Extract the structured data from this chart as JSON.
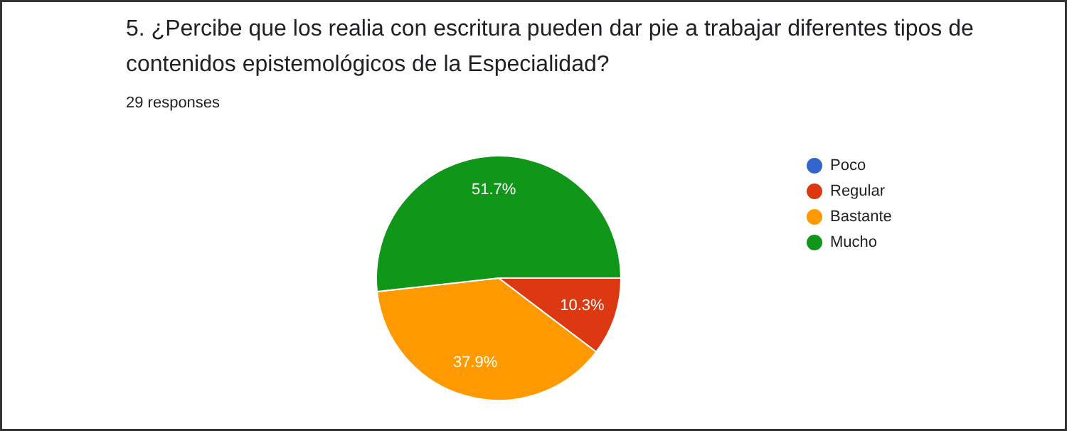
{
  "chart_data": {
    "type": "pie",
    "title": "5. ¿Percibe que los realia con escritura pueden dar pie a trabajar diferentes tipos de contenidos epistemológicos de la Especialidad?",
    "subtitle": "29 responses",
    "categories": [
      "Poco",
      "Regular",
      "Bastante",
      "Mucho"
    ],
    "values": [
      0,
      10.3,
      37.9,
      51.7
    ],
    "value_labels": [
      null,
      "10.3%",
      "37.9%",
      "51.7%"
    ],
    "colors": [
      "#3366cc",
      "#dc3912",
      "#ff9900",
      "#109618"
    ],
    "legend": "right"
  }
}
